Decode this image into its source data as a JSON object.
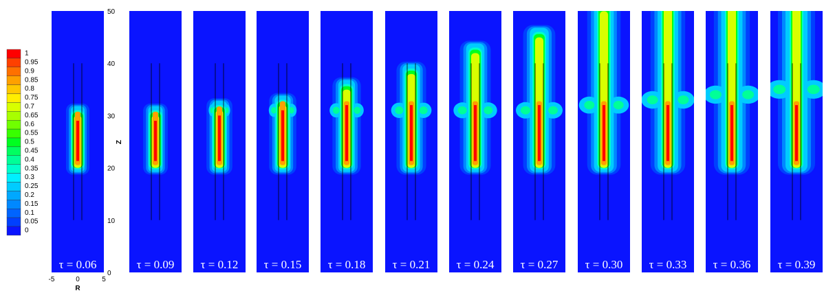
{
  "colorbar": {
    "labels": [
      "1",
      "0.95",
      "0.9",
      "0.85",
      "0.8",
      "0.75",
      "0.7",
      "0.65",
      "0.6",
      "0.55",
      "0.5",
      "0.45",
      "0.4",
      "0.35",
      "0.3",
      "0.25",
      "0.2",
      "0.15",
      "0.1",
      "0.05",
      "0"
    ]
  },
  "axes": {
    "z_label": "Z",
    "z_ticks": [
      "50",
      "40",
      "30",
      "20",
      "10",
      "0"
    ],
    "r_label": "R",
    "r_ticks": [
      "-5",
      "0",
      "5"
    ]
  },
  "panels": [
    "τ = 0.06",
    "τ = 0.09",
    "τ = 0.12",
    "τ = 0.15",
    "τ = 0.18",
    "τ = 0.21",
    "τ = 0.24",
    "τ = 0.27",
    "τ = 0.30",
    "τ = 0.33",
    "τ = 0.36",
    "τ = 0.39"
  ]
}
